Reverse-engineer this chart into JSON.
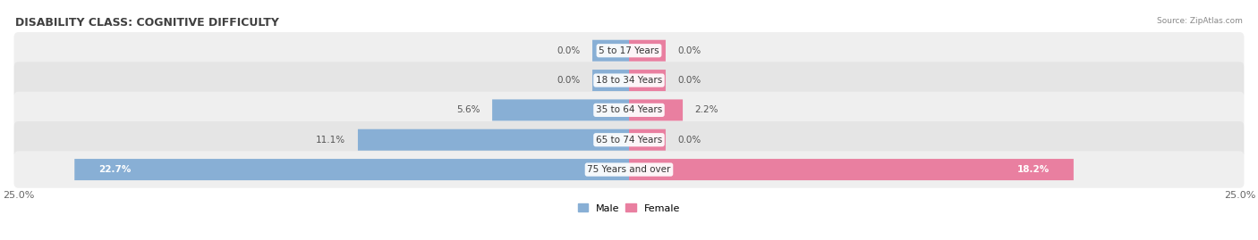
{
  "title": "DISABILITY CLASS: COGNITIVE DIFFICULTY",
  "source": "Source: ZipAtlas.com",
  "categories": [
    "5 to 17 Years",
    "18 to 34 Years",
    "35 to 64 Years",
    "65 to 74 Years",
    "75 Years and over"
  ],
  "male_values": [
    0.0,
    0.0,
    5.6,
    11.1,
    22.7
  ],
  "female_values": [
    0.0,
    0.0,
    2.2,
    0.0,
    18.2
  ],
  "max_val": 25.0,
  "male_color": "#88afd5",
  "female_color": "#e97fa0",
  "row_bg_odd": "#efefef",
  "row_bg_even": "#e5e5e5",
  "label_color": "#555555",
  "title_color": "#404040",
  "axis_label_color": "#666666",
  "legend_male_color": "#88afd5",
  "legend_female_color": "#e97fa0",
  "figsize": [
    14.06,
    2.69
  ],
  "dpi": 100,
  "min_bar_val": 1.5
}
